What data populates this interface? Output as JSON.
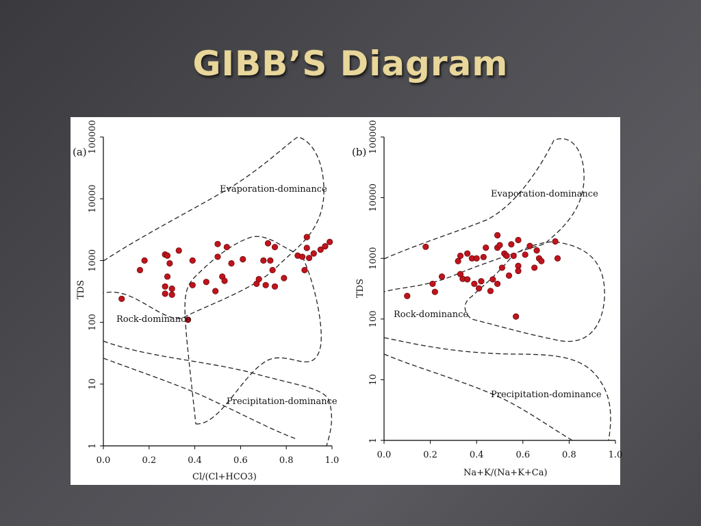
{
  "slide": {
    "title": "GIBB’S Diagram"
  },
  "chart_data": [
    {
      "type": "scatter",
      "panel_label": "(a)",
      "xlabel": "Cl/(Cl+HCO3)",
      "ylabel": "TDS",
      "xlim": [
        0,
        1.0
      ],
      "ylim": [
        1,
        100000
      ],
      "yscale": "log",
      "x_ticks": [
        "0.0",
        "0.2",
        "0.4",
        "0.6",
        "0.8",
        "1.0"
      ],
      "y_ticks": [
        "1",
        "10",
        "100",
        "1000",
        "10000",
        "100000"
      ],
      "regions": [
        "Evaporation-dominance",
        "Rock-dominance",
        "Precipitation-dominance"
      ],
      "marker_color": "#c0141c",
      "points": [
        {
          "x": 0.08,
          "y": 240
        },
        {
          "x": 0.16,
          "y": 700
        },
        {
          "x": 0.18,
          "y": 1000
        },
        {
          "x": 0.27,
          "y": 1250
        },
        {
          "x": 0.28,
          "y": 1200
        },
        {
          "x": 0.29,
          "y": 900
        },
        {
          "x": 0.28,
          "y": 550
        },
        {
          "x": 0.27,
          "y": 380
        },
        {
          "x": 0.3,
          "y": 350
        },
        {
          "x": 0.27,
          "y": 290
        },
        {
          "x": 0.3,
          "y": 280
        },
        {
          "x": 0.33,
          "y": 1450
        },
        {
          "x": 0.37,
          "y": 110
        },
        {
          "x": 0.39,
          "y": 400
        },
        {
          "x": 0.39,
          "y": 1000
        },
        {
          "x": 0.45,
          "y": 450
        },
        {
          "x": 0.49,
          "y": 320
        },
        {
          "x": 0.5,
          "y": 1850
        },
        {
          "x": 0.5,
          "y": 1150
        },
        {
          "x": 0.52,
          "y": 550
        },
        {
          "x": 0.53,
          "y": 470
        },
        {
          "x": 0.54,
          "y": 1650
        },
        {
          "x": 0.56,
          "y": 900
        },
        {
          "x": 0.61,
          "y": 1050
        },
        {
          "x": 0.67,
          "y": 420
        },
        {
          "x": 0.68,
          "y": 500
        },
        {
          "x": 0.7,
          "y": 1000
        },
        {
          "x": 0.71,
          "y": 400
        },
        {
          "x": 0.72,
          "y": 1900
        },
        {
          "x": 0.73,
          "y": 1000
        },
        {
          "x": 0.74,
          "y": 700
        },
        {
          "x": 0.75,
          "y": 1650
        },
        {
          "x": 0.75,
          "y": 380
        },
        {
          "x": 0.79,
          "y": 520
        },
        {
          "x": 0.85,
          "y": 1200
        },
        {
          "x": 0.87,
          "y": 1150
        },
        {
          "x": 0.88,
          "y": 700
        },
        {
          "x": 0.89,
          "y": 2400
        },
        {
          "x": 0.89,
          "y": 1600
        },
        {
          "x": 0.9,
          "y": 1100
        },
        {
          "x": 0.92,
          "y": 1300
        },
        {
          "x": 0.95,
          "y": 1500
        },
        {
          "x": 0.97,
          "y": 1700
        },
        {
          "x": 0.99,
          "y": 2000
        }
      ]
    },
    {
      "type": "scatter",
      "panel_label": "(b)",
      "xlabel": "Na+K/(Na+K+Ca)",
      "ylabel": "TDS",
      "xlim": [
        0,
        1.0
      ],
      "ylim": [
        1,
        100000
      ],
      "yscale": "log",
      "x_ticks": [
        "0.0",
        "0.2",
        "0.4",
        "0.6",
        "0.8",
        "1.0"
      ],
      "y_ticks": [
        "1",
        "10",
        "100",
        "1000",
        "10000",
        "100000"
      ],
      "regions": [
        "Evaporation-dominance",
        "Rock-dominance",
        "Precipitation-dominance"
      ],
      "marker_color": "#c0141c",
      "points": [
        {
          "x": 0.1,
          "y": 240
        },
        {
          "x": 0.18,
          "y": 1550
        },
        {
          "x": 0.21,
          "y": 380
        },
        {
          "x": 0.22,
          "y": 280
        },
        {
          "x": 0.25,
          "y": 500
        },
        {
          "x": 0.32,
          "y": 900
        },
        {
          "x": 0.33,
          "y": 1100
        },
        {
          "x": 0.33,
          "y": 550
        },
        {
          "x": 0.34,
          "y": 460
        },
        {
          "x": 0.36,
          "y": 1200
        },
        {
          "x": 0.36,
          "y": 450
        },
        {
          "x": 0.38,
          "y": 1000
        },
        {
          "x": 0.39,
          "y": 380
        },
        {
          "x": 0.4,
          "y": 1000
        },
        {
          "x": 0.41,
          "y": 320
        },
        {
          "x": 0.42,
          "y": 420
        },
        {
          "x": 0.43,
          "y": 1050
        },
        {
          "x": 0.44,
          "y": 1500
        },
        {
          "x": 0.46,
          "y": 290
        },
        {
          "x": 0.47,
          "y": 450
        },
        {
          "x": 0.49,
          "y": 2400
        },
        {
          "x": 0.49,
          "y": 1500
        },
        {
          "x": 0.49,
          "y": 380
        },
        {
          "x": 0.5,
          "y": 1650
        },
        {
          "x": 0.51,
          "y": 700
        },
        {
          "x": 0.52,
          "y": 1200
        },
        {
          "x": 0.53,
          "y": 1100
        },
        {
          "x": 0.54,
          "y": 520
        },
        {
          "x": 0.55,
          "y": 1700
        },
        {
          "x": 0.56,
          "y": 1100
        },
        {
          "x": 0.57,
          "y": 110
        },
        {
          "x": 0.58,
          "y": 2000
        },
        {
          "x": 0.58,
          "y": 750
        },
        {
          "x": 0.58,
          "y": 620
        },
        {
          "x": 0.61,
          "y": 1150
        },
        {
          "x": 0.63,
          "y": 1600
        },
        {
          "x": 0.65,
          "y": 700
        },
        {
          "x": 0.66,
          "y": 1350
        },
        {
          "x": 0.67,
          "y": 1000
        },
        {
          "x": 0.68,
          "y": 900
        },
        {
          "x": 0.74,
          "y": 1900
        },
        {
          "x": 0.75,
          "y": 1000
        }
      ]
    }
  ]
}
